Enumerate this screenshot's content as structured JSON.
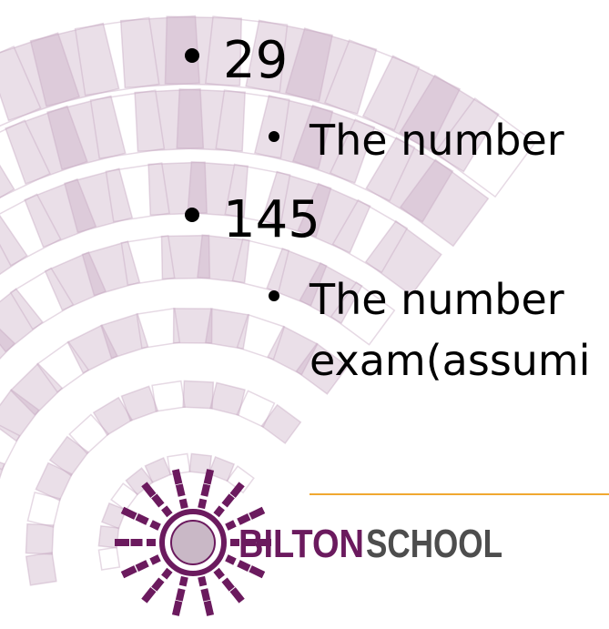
{
  "bullets": [
    {
      "text": "29",
      "sub": [
        "The number"
      ]
    },
    {
      "text": "145",
      "sub": [
        "The number",
        "exam(assumi"
      ]
    }
  ],
  "logo": {
    "part1": "BILTON",
    "part2": "SCHOOL"
  }
}
